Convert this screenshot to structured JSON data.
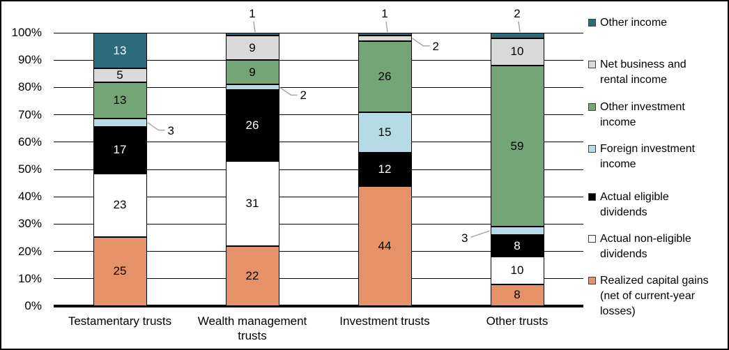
{
  "chart_data": {
    "type": "bar",
    "variant": "100-percent-stacked-column",
    "categories": [
      "Testamentary trusts",
      "Wealth management trusts",
      "Investment trusts",
      "Other trusts"
    ],
    "x_axis_labels": [
      "Testamentary trusts",
      "Wealth management\ntrusts",
      "Investment trusts",
      "Other trusts"
    ],
    "series": [
      {
        "name": "Realized capital gains (net of current-year losses)",
        "color": "#E79169",
        "label_color": "#000000",
        "values": [
          25,
          22,
          44,
          8
        ]
      },
      {
        "name": "Actual non-eligible dividends",
        "color": "#FFFFFF",
        "label_color": "#000000",
        "values": [
          23,
          31,
          0,
          10
        ]
      },
      {
        "name": "Actual eligible dividends",
        "color": "#000000",
        "label_color": "#FFFFFF",
        "values": [
          17,
          26,
          12,
          8
        ]
      },
      {
        "name": "Foreign investment income",
        "color": "#B6DBE6",
        "label_color": "#000000",
        "values": [
          3,
          2,
          15,
          3
        ]
      },
      {
        "name": "Other investment income",
        "color": "#73A577",
        "label_color": "#000000",
        "values": [
          13,
          9,
          26,
          59
        ]
      },
      {
        "name": "Net business and rental income",
        "color": "#D9D9D9",
        "label_color": "#000000",
        "values": [
          5,
          9,
          2,
          10
        ]
      },
      {
        "name": "Other income",
        "color": "#2C6A7C",
        "label_color": "#FFFFFF",
        "values": [
          13,
          1,
          1,
          2
        ]
      }
    ],
    "y_ticks": [
      "0%",
      "10%",
      "20%",
      "30%",
      "40%",
      "50%",
      "60%",
      "70%",
      "80%",
      "90%",
      "100%"
    ],
    "ylim": [
      0,
      100
    ],
    "grid": true,
    "legend_position": "right",
    "leader_line_color": "#A6A6A6",
    "callouts": [
      {
        "category": 0,
        "series": "Foreign investment income",
        "value": 3,
        "side": "right"
      },
      {
        "category": 1,
        "series": "Other income",
        "value": 1,
        "side": "above"
      },
      {
        "category": 1,
        "series": "Foreign investment income",
        "value": 2,
        "side": "right"
      },
      {
        "category": 2,
        "series": "Other income",
        "value": 1,
        "side": "above"
      },
      {
        "category": 2,
        "series": "Net business and rental income",
        "value": 2,
        "side": "right"
      },
      {
        "category": 3,
        "series": "Other income",
        "value": 2,
        "side": "above"
      },
      {
        "category": 3,
        "series": "Foreign investment income",
        "value": 3,
        "side": "left"
      }
    ]
  },
  "legend": {
    "items": [
      {
        "label": "Other income",
        "color": "#2C6A7C"
      },
      {
        "label": "Net business and\nrental income",
        "color": "#D9D9D9"
      },
      {
        "label": "Other investment\nincome",
        "color": "#73A577"
      },
      {
        "label": "Foreign investment\nincome",
        "color": "#B6DBE6"
      },
      {
        "label": "Actual eligible\ndividends",
        "color": "#000000"
      },
      {
        "label": "Actual non-eligible\ndividends",
        "color": "#FFFFFF"
      },
      {
        "label": "Realized capital gains\n(net of current-year\nlosses)",
        "color": "#E79169"
      }
    ]
  }
}
